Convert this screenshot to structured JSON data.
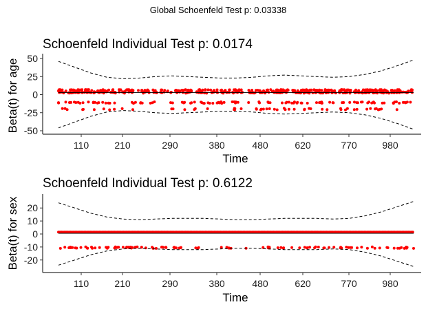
{
  "global_title": "Global Schoenfeld Test p: 0.03338",
  "colors": {
    "points": "#ff0000",
    "lines": "#000000",
    "background": "#ffffff"
  },
  "chart_data": [
    {
      "type": "scatter",
      "title": "Schoenfeld Individual Test p: 0.0174",
      "xlabel": "Time",
      "ylabel": "Beta(t) for age",
      "x_ticks": [
        "110",
        "210",
        "290",
        "380",
        "480",
        "620",
        "770",
        "980"
      ],
      "y_ticks": [
        50,
        25,
        0,
        -25,
        -50
      ],
      "ylim": [
        -50,
        50
      ],
      "grid": false,
      "fitted_line": 3,
      "confidence_band": {
        "upper": [
          46,
          38,
          30,
          24,
          22,
          23,
          25,
          26,
          25,
          24,
          23,
          23,
          24,
          26,
          27,
          26,
          25,
          24,
          25,
          28,
          33,
          40,
          48
        ],
        "lower": [
          -46,
          -38,
          -30,
          -24,
          -22,
          -23,
          -25,
          -26,
          -25,
          -24,
          -23,
          -23,
          -24,
          -26,
          -27,
          -26,
          -25,
          -24,
          -25,
          -28,
          -33,
          -40,
          -48
        ]
      },
      "point_bands": [
        {
          "y": 6,
          "density": "dense"
        },
        {
          "y": 3,
          "density": "dense"
        },
        {
          "y": -11,
          "density": "moderate"
        },
        {
          "y": -20,
          "density": "sparse"
        }
      ]
    },
    {
      "type": "scatter",
      "title": "Schoenfeld Individual Test p: 0.6122",
      "xlabel": "Time",
      "ylabel": "Beta(t) for sex",
      "x_ticks": [
        "110",
        "210",
        "290",
        "380",
        "480",
        "620",
        "770",
        "980"
      ],
      "y_ticks": [
        20,
        10,
        0,
        -10,
        -20
      ],
      "ylim": [
        -27,
        27
      ],
      "grid": false,
      "fitted_line": 0.5,
      "confidence_band": {
        "upper": [
          24,
          20,
          16,
          13,
          11.5,
          11,
          11.5,
          12,
          12,
          12,
          11.5,
          11,
          11,
          11.5,
          12,
          12,
          12,
          11.5,
          12,
          14,
          17,
          21,
          25
        ],
        "lower": [
          -24,
          -20,
          -16,
          -13,
          -11.5,
          -11,
          -11.5,
          -12,
          -12,
          -12,
          -11.5,
          -11,
          -11,
          -11.5,
          -12,
          -12,
          -12,
          -11.5,
          -12,
          -14,
          -17,
          -21,
          -25
        ]
      },
      "point_bands": [
        {
          "y": 1.5,
          "density": "solid"
        },
        {
          "y": -10.5,
          "density": "moderate"
        }
      ]
    }
  ]
}
